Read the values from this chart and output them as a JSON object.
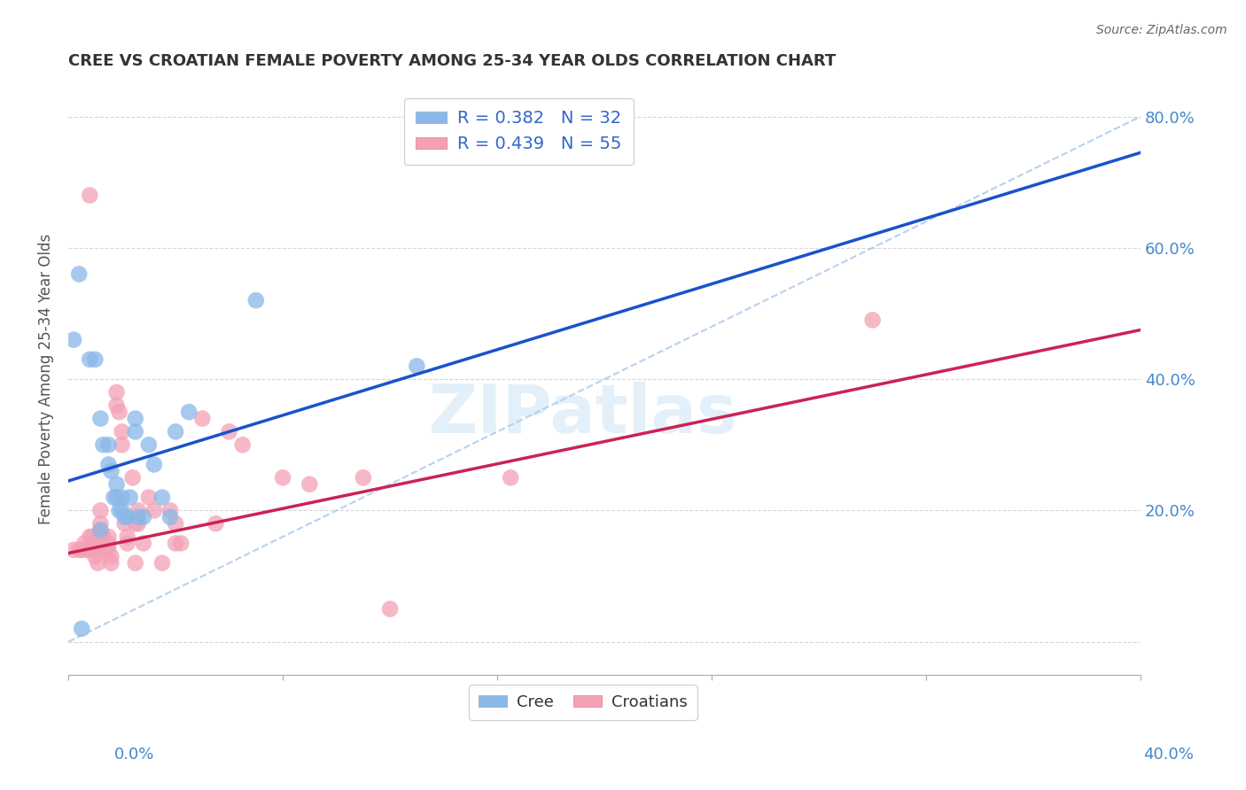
{
  "title": "CREE VS CROATIAN FEMALE POVERTY AMONG 25-34 YEAR OLDS CORRELATION CHART",
  "source": "Source: ZipAtlas.com",
  "ylabel": "Female Poverty Among 25-34 Year Olds",
  "xlim": [
    0.0,
    0.4
  ],
  "ylim": [
    -0.05,
    0.85
  ],
  "ytick_vals": [
    0.0,
    0.2,
    0.4,
    0.6,
    0.8
  ],
  "ytick_labels": [
    "",
    "20.0%",
    "40.0%",
    "60.0%",
    "80.0%"
  ],
  "xtick_vals": [
    0.0,
    0.08,
    0.16,
    0.24,
    0.32,
    0.4
  ],
  "cree_color": "#8ab8e8",
  "croatian_color": "#f4a0b5",
  "cree_line_color": "#1a52cc",
  "croatian_line_color": "#cc2255",
  "diagonal_color": "#b0ccee",
  "R_cree": 0.382,
  "N_cree": 32,
  "R_croatian": 0.439,
  "N_croatian": 55,
  "watermark": "ZIPatlas",
  "background_color": "#ffffff",
  "grid_color": "#cccccc",
  "tick_label_color": "#4488cc",
  "title_color": "#333333",
  "legend_text_color": "#3366cc",
  "cree_pts": [
    [
      0.002,
      0.46
    ],
    [
      0.004,
      0.56
    ],
    [
      0.008,
      0.43
    ],
    [
      0.01,
      0.43
    ],
    [
      0.012,
      0.34
    ],
    [
      0.013,
      0.3
    ],
    [
      0.015,
      0.3
    ],
    [
      0.015,
      0.27
    ],
    [
      0.016,
      0.26
    ],
    [
      0.017,
      0.22
    ],
    [
      0.018,
      0.24
    ],
    [
      0.018,
      0.22
    ],
    [
      0.019,
      0.2
    ],
    [
      0.02,
      0.22
    ],
    [
      0.02,
      0.2
    ],
    [
      0.021,
      0.19
    ],
    [
      0.022,
      0.19
    ],
    [
      0.023,
      0.22
    ],
    [
      0.025,
      0.34
    ],
    [
      0.025,
      0.32
    ],
    [
      0.026,
      0.19
    ],
    [
      0.028,
      0.19
    ],
    [
      0.03,
      0.3
    ],
    [
      0.032,
      0.27
    ],
    [
      0.035,
      0.22
    ],
    [
      0.038,
      0.19
    ],
    [
      0.04,
      0.32
    ],
    [
      0.045,
      0.35
    ],
    [
      0.07,
      0.52
    ],
    [
      0.13,
      0.42
    ],
    [
      0.005,
      0.02
    ],
    [
      0.012,
      0.17
    ]
  ],
  "croatian_pts": [
    [
      0.002,
      0.14
    ],
    [
      0.004,
      0.14
    ],
    [
      0.005,
      0.14
    ],
    [
      0.006,
      0.15
    ],
    [
      0.007,
      0.14
    ],
    [
      0.008,
      0.16
    ],
    [
      0.008,
      0.14
    ],
    [
      0.009,
      0.16
    ],
    [
      0.01,
      0.15
    ],
    [
      0.01,
      0.14
    ],
    [
      0.01,
      0.13
    ],
    [
      0.011,
      0.12
    ],
    [
      0.012,
      0.2
    ],
    [
      0.012,
      0.18
    ],
    [
      0.012,
      0.17
    ],
    [
      0.013,
      0.16
    ],
    [
      0.013,
      0.15
    ],
    [
      0.014,
      0.14
    ],
    [
      0.015,
      0.16
    ],
    [
      0.015,
      0.15
    ],
    [
      0.015,
      0.14
    ],
    [
      0.016,
      0.13
    ],
    [
      0.016,
      0.12
    ],
    [
      0.018,
      0.38
    ],
    [
      0.018,
      0.36
    ],
    [
      0.019,
      0.35
    ],
    [
      0.02,
      0.32
    ],
    [
      0.02,
      0.3
    ],
    [
      0.021,
      0.18
    ],
    [
      0.022,
      0.16
    ],
    [
      0.022,
      0.15
    ],
    [
      0.024,
      0.25
    ],
    [
      0.025,
      0.18
    ],
    [
      0.025,
      0.12
    ],
    [
      0.026,
      0.2
    ],
    [
      0.026,
      0.18
    ],
    [
      0.028,
      0.15
    ],
    [
      0.03,
      0.22
    ],
    [
      0.032,
      0.2
    ],
    [
      0.035,
      0.12
    ],
    [
      0.038,
      0.2
    ],
    [
      0.04,
      0.18
    ],
    [
      0.04,
      0.15
    ],
    [
      0.042,
      0.15
    ],
    [
      0.05,
      0.34
    ],
    [
      0.055,
      0.18
    ],
    [
      0.06,
      0.32
    ],
    [
      0.065,
      0.3
    ],
    [
      0.08,
      0.25
    ],
    [
      0.09,
      0.24
    ],
    [
      0.11,
      0.25
    ],
    [
      0.12,
      0.05
    ],
    [
      0.165,
      0.25
    ],
    [
      0.3,
      0.49
    ],
    [
      0.008,
      0.68
    ]
  ],
  "cree_line": [
    [
      0.0,
      0.245
    ],
    [
      0.14,
      0.42
    ]
  ],
  "croatian_line": [
    [
      0.0,
      0.135
    ],
    [
      0.4,
      0.475
    ]
  ],
  "diag_line": [
    [
      0.0,
      0.0
    ],
    [
      0.4,
      0.8
    ]
  ]
}
